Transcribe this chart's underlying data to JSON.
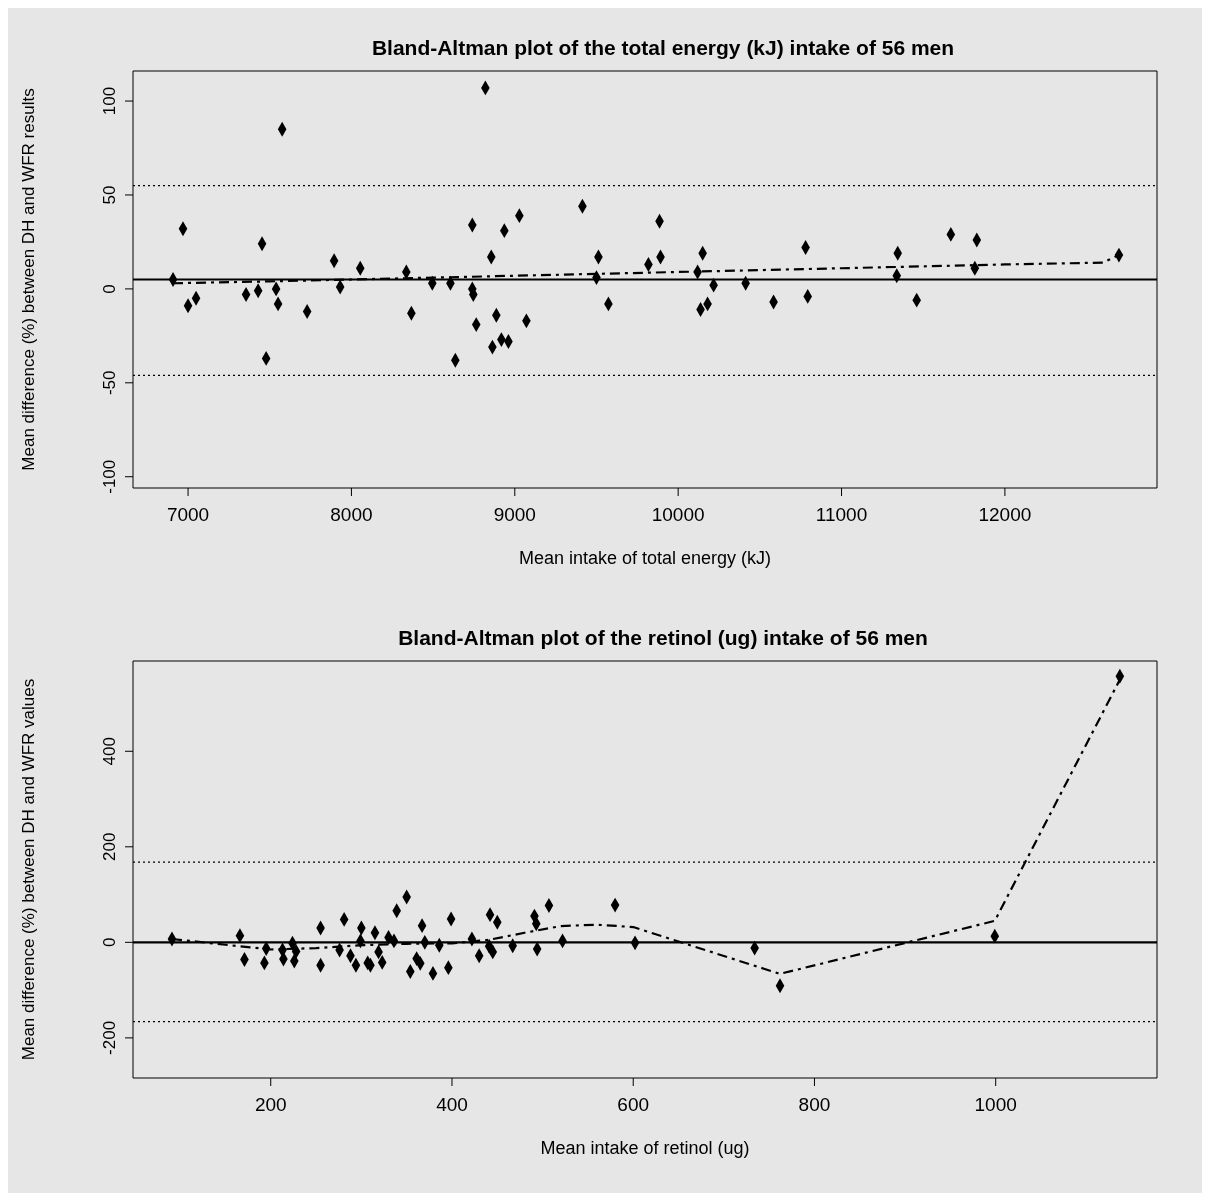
{
  "chart_data": [
    {
      "type": "scatter",
      "title": "Bland-Altman plot of the total energy (kJ) intake of 56 men",
      "xlabel": "Mean intake of total energy (kJ)",
      "ylabel": "Mean difference (%) between DH and WFR results",
      "xlim": [
        6663,
        12931
      ],
      "xticks": [
        7000,
        8000,
        9000,
        10000,
        11000,
        12000
      ],
      "ylim": [
        -106,
        116
      ],
      "yticks": [
        -100,
        -50,
        0,
        50,
        100
      ],
      "marker": "diamond",
      "series": [
        {
          "color": "#000000",
          "x": [
            6969,
            7000,
            7049,
            6908,
            7453,
            7429,
            7355,
            7539,
            7551,
            7478,
            7576,
            7729,
            7894,
            7931,
            8054,
            8336,
            8367,
            8495,
            8606,
            8636,
            8740,
            8740,
            8746,
            8764,
            8820,
            8856,
            8887,
            8863,
            8936,
            8918,
            8961,
            9028,
            9071,
            9414,
            9512,
            9500,
            9573,
            9818,
            9886,
            9892,
            10119,
            10150,
            10137,
            10180,
            10217,
            10413,
            10584,
            10780,
            10793,
            11344,
            11338,
            11460,
            11669,
            11828,
            11816,
            12698
          ],
          "values": [
            32,
            -9,
            -5,
            5,
            24,
            -1,
            -3,
            0,
            -8,
            -37,
            85,
            -12,
            15,
            1,
            11,
            9,
            -13,
            3,
            3,
            -38,
            34,
            0,
            -3,
            -19,
            107,
            17,
            -14,
            -31,
            31,
            -27,
            -28,
            39,
            -17,
            44,
            17,
            6,
            -8,
            13,
            36,
            17,
            9,
            19,
            -11,
            -8,
            2,
            3,
            -7,
            22,
            -4,
            19,
            7,
            -6,
            29,
            26,
            11,
            18
          ]
        },
        {
          "type": "line",
          "color": "#000000",
          "marker": "none",
          "line_style": "dashed",
          "x": [
            6908,
            7500,
            8000,
            8500,
            9000,
            9500,
            10000,
            10500,
            11000,
            11500,
            12000,
            12600,
            12698
          ],
          "values": [
            3,
            4,
            5,
            6,
            7,
            8,
            9,
            10,
            11,
            12,
            13,
            14,
            18
          ]
        }
      ],
      "ref_lines": [
        {
          "axis": "y",
          "value": 5,
          "color": "#000000",
          "line_style": "solid"
        },
        {
          "axis": "y",
          "value": 55,
          "color": "#000000",
          "line_style": "dotted"
        },
        {
          "axis": "y",
          "value": -46,
          "color": "#000000",
          "line_style": "dotted"
        }
      ]
    },
    {
      "type": "scatter",
      "title": "Bland-Altman plot of the retinol (ug) intake of 56 men",
      "xlabel": "Mean intake of retinol (ug)",
      "ylabel": "Mean difference (%) between DH and WFR values",
      "xlim": [
        48,
        1178
      ],
      "xticks": [
        200,
        400,
        600,
        800,
        1000
      ],
      "ylim": [
        -284,
        589
      ],
      "yticks": [
        -200,
        0,
        200,
        400
      ],
      "marker": "diamond",
      "series": [
        {
          "color": "#000000",
          "x": [
            91,
            166,
            171,
            193,
            195,
            214,
            213,
            226,
            224,
            228,
            255,
            255,
            276,
            281,
            288,
            294,
            299,
            300,
            307,
            310,
            315,
            319,
            323,
            330,
            336,
            339,
            350,
            354,
            361,
            365,
            367,
            370,
            379,
            386,
            396,
            399,
            422,
            430,
            442,
            441,
            445,
            450,
            467,
            491,
            493,
            494,
            507,
            522,
            580,
            602,
            734,
            762,
            999,
            1137
          ],
          "values": [
            7,
            14,
            -36,
            -43,
            -13,
            -35,
            -16,
            -39,
            -2,
            -19,
            30,
            -48,
            -16,
            48,
            -28,
            -48,
            3,
            30,
            -43,
            -48,
            20,
            -20,
            -42,
            10,
            3,
            66,
            95,
            -61,
            -34,
            -44,
            35,
            0,
            -65,
            -6,
            -53,
            49,
            7,
            -28,
            58,
            -8,
            -20,
            42,
            -7,
            55,
            39,
            -14,
            77,
            3,
            78,
            -1,
            -12,
            -91,
            13,
            557
          ]
        },
        {
          "type": "line",
          "color": "#000000",
          "marker": "none",
          "line_style": "dashed",
          "x": [
            91,
            150,
            200,
            250,
            300,
            350,
            400,
            440,
            480,
            520,
            560,
            600,
            762,
            999,
            1137
          ],
          "values": [
            7,
            -5,
            -15,
            -12,
            -6,
            -3,
            -2,
            5,
            20,
            34,
            37,
            32,
            -66,
            45,
            550
          ]
        }
      ],
      "ref_lines": [
        {
          "axis": "y",
          "value": 0,
          "color": "#000000",
          "line_style": "solid"
        },
        {
          "axis": "y",
          "value": 168,
          "color": "#000000",
          "line_style": "dotted"
        },
        {
          "axis": "y",
          "value": -166,
          "color": "#000000",
          "line_style": "dotted"
        }
      ]
    }
  ]
}
